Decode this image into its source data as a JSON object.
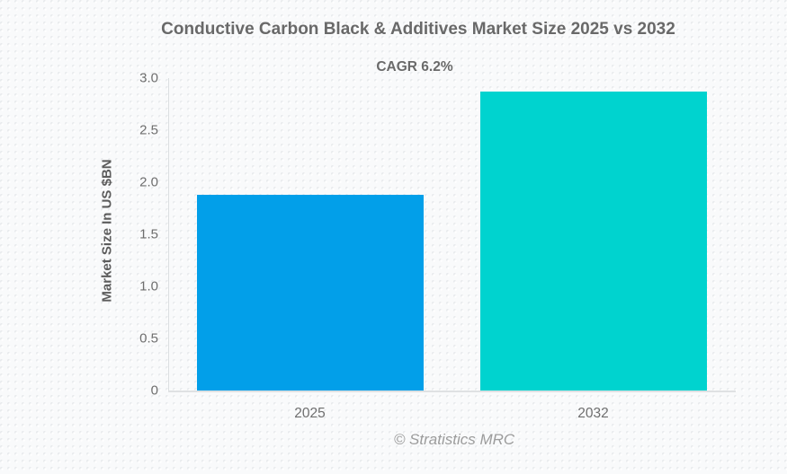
{
  "page": {
    "title": "Conductive Carbon Black & Additives Market Size 2025 vs 2032",
    "subtitle": "CAGR 6.2%",
    "footer": "© Stratistics MRC"
  },
  "chart_data": {
    "type": "bar",
    "title": "Conductive Carbon Black & Additives Market Size 2025 vs 2032",
    "annotation": "CAGR 6.2%",
    "categories": [
      "2025",
      "2032"
    ],
    "values": [
      1.88,
      2.87
    ],
    "bar_colors": [
      "#029FE9",
      "#00D3CF"
    ],
    "xlabel": "",
    "ylabel": "Market Size In US $BN",
    "ylim": [
      0,
      3.0
    ],
    "yticks": [
      0,
      0.5,
      1.0,
      1.5,
      2.0,
      2.5,
      3.0
    ],
    "ytick_labels": [
      "0",
      "0.5",
      "1.0",
      "1.5",
      "2.0",
      "2.5",
      "3.0"
    ],
    "grid": false,
    "legend": false,
    "source": "© Stratistics MRC"
  },
  "colors": {
    "bar_2025": "#029FE9",
    "bar_2032": "#00D3CF",
    "axis_line": "#dcdfe1",
    "text_primary": "#696969",
    "text_footer": "#9c9c9c"
  }
}
